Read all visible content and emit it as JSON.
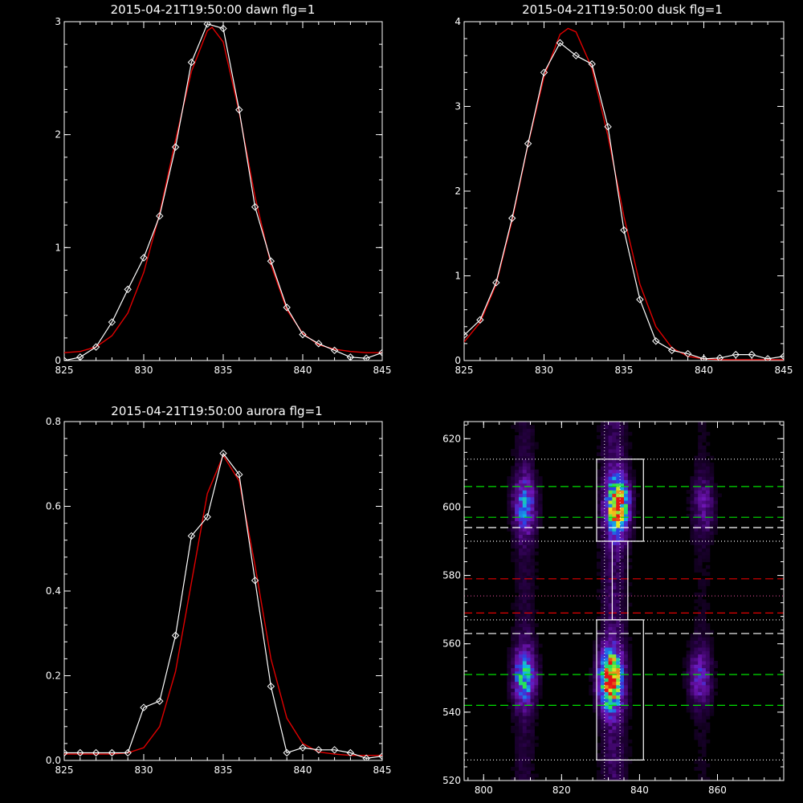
{
  "chart_data": [
    {
      "type": "line",
      "title": "2015-04-21T19:50:00 dawn flg=1",
      "xlim": [
        825,
        845
      ],
      "ylim": [
        0,
        3
      ],
      "xticks": [
        "825",
        "830",
        "835",
        "840",
        "845"
      ],
      "yticks": [
        "0",
        "1",
        "2",
        "3"
      ],
      "series": [
        {
          "x": [
            825,
            826,
            827,
            828,
            829,
            830,
            831,
            832,
            833,
            834,
            835,
            836,
            837,
            838,
            839,
            840,
            841,
            842,
            843,
            844,
            845
          ],
          "y": [
            0.0,
            0.03,
            0.12,
            0.34,
            0.63,
            0.91,
            1.28,
            1.89,
            2.64,
            2.98,
            2.94,
            2.22,
            1.36,
            0.88,
            0.47,
            0.23,
            0.15,
            0.09,
            0.03,
            0.02,
            0.07
          ]
        },
        {
          "x": [
            825,
            826,
            827,
            828,
            829,
            830,
            831,
            832,
            833,
            834,
            834.3,
            835,
            836,
            837,
            838,
            839,
            840,
            841,
            842,
            843,
            844,
            845
          ],
          "y": [
            0.07,
            0.08,
            0.12,
            0.22,
            0.42,
            0.78,
            1.3,
            1.95,
            2.56,
            2.92,
            2.95,
            2.82,
            2.2,
            1.45,
            0.85,
            0.45,
            0.24,
            0.14,
            0.1,
            0.08,
            0.07,
            0.07
          ]
        }
      ]
    },
    {
      "type": "line",
      "title": "2015-04-21T19:50:00 dusk flg=1",
      "xlim": [
        825,
        845
      ],
      "ylim": [
        0,
        4
      ],
      "xticks": [
        "825",
        "830",
        "835",
        "840",
        "845"
      ],
      "yticks": [
        "0",
        "1",
        "2",
        "3",
        "4"
      ],
      "series": [
        {
          "x": [
            825,
            826,
            827,
            828,
            829,
            830,
            831,
            832,
            833,
            834,
            835,
            836,
            837,
            838,
            839,
            840,
            841,
            842,
            843,
            844,
            845
          ],
          "y": [
            0.3,
            0.48,
            0.92,
            1.68,
            2.56,
            3.4,
            3.75,
            3.6,
            3.5,
            2.76,
            1.54,
            0.72,
            0.23,
            0.12,
            0.08,
            0.02,
            0.03,
            0.07,
            0.07,
            0.02,
            0.05
          ]
        },
        {
          "x": [
            825,
            826,
            827,
            828,
            829,
            830,
            831,
            831.5,
            832,
            833,
            834,
            835,
            836,
            837,
            838,
            839,
            840,
            841,
            842,
            843,
            844,
            845
          ],
          "y": [
            0.22,
            0.45,
            0.9,
            1.65,
            2.55,
            3.35,
            3.85,
            3.92,
            3.88,
            3.45,
            2.65,
            1.7,
            0.9,
            0.4,
            0.15,
            0.05,
            0.02,
            0.01,
            0.01,
            0.01,
            0.01,
            0.01
          ]
        }
      ]
    },
    {
      "type": "line",
      "title": "2015-04-21T19:50:00 aurora flg=1",
      "xlim": [
        825,
        845
      ],
      "ylim": [
        0,
        0.8
      ],
      "xticks": [
        "825",
        "830",
        "835",
        "840",
        "845"
      ],
      "yticks": [
        "0.0",
        "0.2",
        "0.4",
        "0.6",
        "0.8"
      ],
      "series": [
        {
          "x": [
            825,
            826,
            827,
            828,
            829,
            830,
            831,
            832,
            833,
            834,
            835,
            836,
            837,
            838,
            839,
            840,
            841,
            842,
            843,
            844,
            845
          ],
          "y": [
            0.018,
            0.018,
            0.018,
            0.018,
            0.018,
            0.125,
            0.14,
            0.295,
            0.53,
            0.575,
            0.725,
            0.675,
            0.425,
            0.175,
            0.018,
            0.03,
            0.025,
            0.025,
            0.018,
            0.005,
            0.01
          ]
        },
        {
          "x": [
            825,
            826,
            827,
            828,
            829,
            830,
            831,
            832,
            833,
            834,
            835,
            836,
            837,
            838,
            839,
            840,
            841,
            842,
            843,
            844,
            845
          ],
          "y": [
            0.015,
            0.015,
            0.015,
            0.015,
            0.018,
            0.03,
            0.08,
            0.21,
            0.42,
            0.63,
            0.72,
            0.66,
            0.46,
            0.24,
            0.1,
            0.04,
            0.02,
            0.015,
            0.012,
            0.012,
            0.012
          ]
        }
      ]
    },
    {
      "type": "heatmap",
      "xlim": [
        795,
        877
      ],
      "ylim": [
        520,
        625
      ],
      "xticks": [
        "800",
        "820",
        "840",
        "860"
      ],
      "yticks": [
        "520",
        "540",
        "560",
        "580",
        "600",
        "620"
      ],
      "blobs": [
        {
          "x": 810,
          "y": 600,
          "intensity": 0.45
        },
        {
          "x": 834,
          "y": 600,
          "intensity": 0.85
        },
        {
          "x": 856,
          "y": 600,
          "intensity": 0.25
        },
        {
          "x": 810,
          "y": 550,
          "intensity": 0.55
        },
        {
          "x": 832,
          "y": 549,
          "intensity": 1.0
        },
        {
          "x": 855,
          "y": 550,
          "intensity": 0.35
        }
      ],
      "boxes": [
        {
          "x": [
            829,
            841
          ],
          "y": [
            590,
            614
          ]
        },
        {
          "x": [
            829,
            841
          ],
          "y": [
            526,
            567
          ]
        },
        {
          "x": [
            833,
            837
          ],
          "y": [
            567,
            590
          ]
        }
      ],
      "hlines": [
        {
          "y": 606,
          "color": "#00e000",
          "style": "dash"
        },
        {
          "y": 597,
          "color": "#00e000",
          "style": "dash"
        },
        {
          "y": 594,
          "color": "#ffffff",
          "style": "dash"
        },
        {
          "y": 551,
          "color": "#00e000",
          "style": "dash"
        },
        {
          "y": 542,
          "color": "#00e000",
          "style": "dash"
        },
        {
          "y": 563,
          "color": "#ffffff",
          "style": "dash"
        },
        {
          "y": 579,
          "color": "#e00000",
          "style": "dash"
        },
        {
          "y": 569,
          "color": "#e00000",
          "style": "dash"
        },
        {
          "y": 614,
          "color": "#ffffff",
          "style": "dot"
        },
        {
          "y": 590,
          "color": "#ffffff",
          "style": "dot"
        },
        {
          "y": 574,
          "color": "#c0407f",
          "style": "dot"
        },
        {
          "y": 567,
          "color": "#ffffff",
          "style": "dot"
        },
        {
          "y": 526,
          "color": "#ffffff",
          "style": "dot"
        }
      ],
      "vlines": [
        {
          "x": 831,
          "color": "#ffffff",
          "style": "dot"
        },
        {
          "x": 835,
          "color": "#ffffff",
          "style": "dot"
        }
      ]
    }
  ]
}
